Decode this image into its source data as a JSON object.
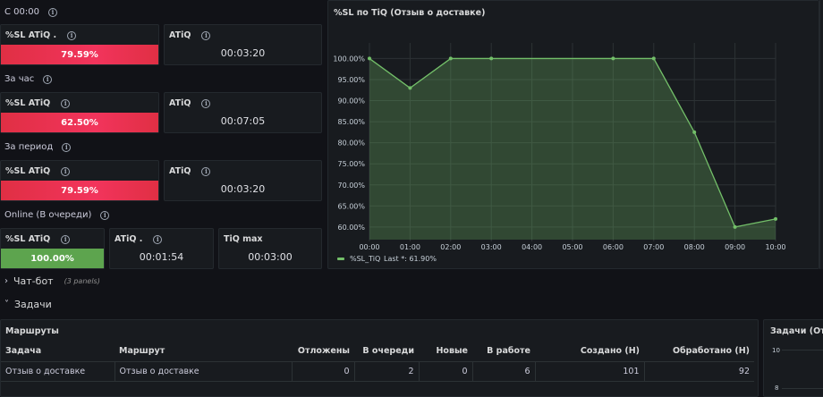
{
  "sections": {
    "c0000": "С 00:00",
    "hour": "За час",
    "period": "За период",
    "online": "Online (В очереди)"
  },
  "stats": {
    "s1_sl_label": "%SL ATiQ .",
    "s1_sl_value": "79.59%",
    "s1_atiq_label": "ATiQ",
    "s1_atiq_value": "00:03:20",
    "s2_sl_label": "%SL ATiQ",
    "s2_sl_value": "62.50%",
    "s2_atiq_label": "ATiQ",
    "s2_atiq_value": "00:07:05",
    "s3_sl_label": "%SL ATiQ",
    "s3_sl_value": "79.59%",
    "s3_atiq_label": "ATiQ",
    "s3_atiq_value": "00:03:20",
    "s4_sl_label": "%SL ATiQ",
    "s4_sl_value": "100.00%",
    "s4_atiq_label": "ATiQ .",
    "s4_atiq_value": "00:01:54",
    "s4_tiq_label": "TiQ max",
    "s4_tiq_value": "00:03:00"
  },
  "colors": {
    "red": "#f2345c",
    "green": "#5da44e",
    "line": "#73bf69"
  },
  "chart_data": {
    "type": "area",
    "title": "%SL по TiQ (Отзыв о доставке)",
    "x": [
      "00:00",
      "01:00",
      "02:00",
      "03:00",
      "04:00",
      "05:00",
      "06:00",
      "07:00",
      "08:00",
      "09:00",
      "10:00"
    ],
    "series": [
      {
        "name": "%SL_TiQ",
        "values": [
          100,
          93,
          100,
          100,
          null,
          null,
          100,
          100,
          82.5,
          60,
          61.9
        ]
      }
    ],
    "yticks": [
      "100.00%",
      "95.00%",
      "90.00%",
      "85.00%",
      "80.00%",
      "75.00%",
      "70.00%",
      "65.00%",
      "60.00%"
    ],
    "ylim": [
      57,
      102
    ],
    "legend": "%SL_TiQ",
    "legend_last": "Last *: 61.90%",
    "grid": true,
    "legend_position": "bottom-left"
  },
  "rows": {
    "chatbot": "Чат-бот",
    "chatbot_sub": "(3 panels)",
    "tasks": "Задачи"
  },
  "routes": {
    "title": "Маршруты",
    "headers": [
      "Задача",
      "Маршрут",
      "Отложены",
      "В очереди",
      "Новые",
      "В работе",
      "Создано (Н)",
      "Обработано (Н)"
    ],
    "rows": [
      [
        "Отзыв о доставке",
        "Отзыв о доставке",
        "0",
        "2",
        "0",
        "6",
        "101",
        "92"
      ]
    ]
  },
  "tasks_panel": {
    "title": "Задачи (Отз",
    "yticks": [
      "10",
      "8"
    ]
  }
}
